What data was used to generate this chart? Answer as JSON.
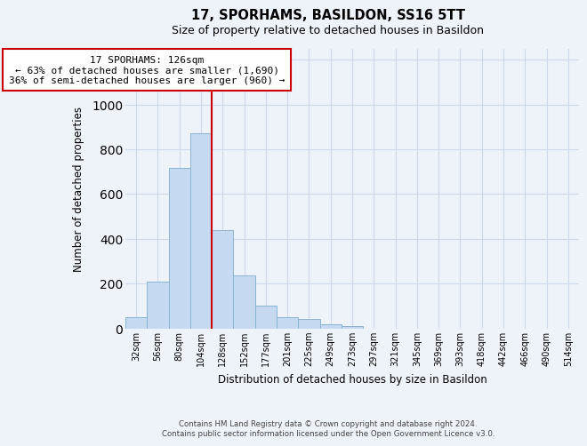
{
  "title": "17, SPORHAMS, BASILDON, SS16 5TT",
  "subtitle": "Size of property relative to detached houses in Basildon",
  "xlabel": "Distribution of detached houses by size in Basildon",
  "ylabel": "Number of detached properties",
  "bar_labels": [
    "32sqm",
    "56sqm",
    "80sqm",
    "104sqm",
    "128sqm",
    "152sqm",
    "177sqm",
    "201sqm",
    "225sqm",
    "249sqm",
    "273sqm",
    "297sqm",
    "321sqm",
    "345sqm",
    "369sqm",
    "393sqm",
    "418sqm",
    "442sqm",
    "466sqm",
    "490sqm",
    "514sqm"
  ],
  "bar_values": [
    50,
    210,
    715,
    870,
    440,
    235,
    103,
    50,
    40,
    18,
    10,
    0,
    0,
    0,
    0,
    0,
    0,
    0,
    0,
    0,
    0
  ],
  "bar_color": "#c5d9f0",
  "bar_edge_color": "#8ab4d4",
  "highlight_line_color": "#cc0000",
  "annotation_line1": "17 SPORHAMS: 126sqm",
  "annotation_line2": "← 63% of detached houses are smaller (1,690)",
  "annotation_line3": "36% of semi-detached houses are larger (960) →",
  "ylim": [
    0,
    1250
  ],
  "yticks": [
    0,
    200,
    400,
    600,
    800,
    1000,
    1200
  ],
  "footer_line1": "Contains HM Land Registry data © Crown copyright and database right 2024.",
  "footer_line2": "Contains public sector information licensed under the Open Government Licence v3.0.",
  "grid_color": "#cdd9e8",
  "background_color": "#eef2f9"
}
